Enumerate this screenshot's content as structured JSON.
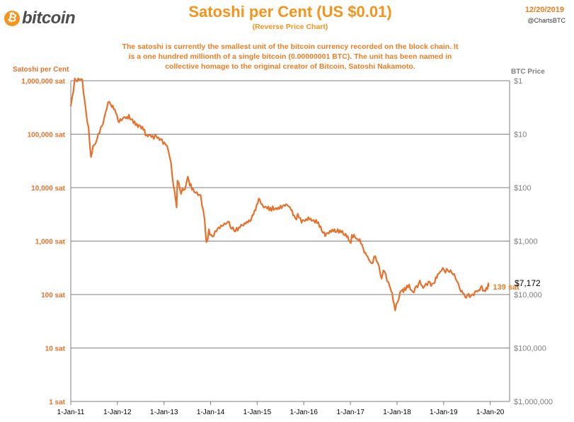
{
  "header": {
    "logo_symbol": "₿",
    "logo_text": "bitcoin",
    "title": "Satoshi per Cent (US $0.01)",
    "subtitle": "(Reverse Price Chart)",
    "description_line1": "The satoshi is currently the smallest unit of the bitcoin currency recorded on the block chain. It",
    "description_line2": "is a one hundred millionth of a single bitcoin (0.00000001 BTC).  The unit has been named in",
    "description_line3": "collective homage to the original creator of Bitcoin, Satoshi Nakamoto.",
    "date": "12/20/2019",
    "handle": "@ChartsBTC"
  },
  "colors": {
    "line": "#e8702a",
    "accent": "#f7931a",
    "grid": "#7f7f7f"
  },
  "chart_data": {
    "type": "line",
    "title": "Satoshi per Cent (US $0.01)",
    "subtitle": "(Reverse Price Chart)",
    "ylabel": "Satoshi per Cent",
    "y2label": "BTC Price",
    "y_scale": "log",
    "ylim": [
      1,
      1000000
    ],
    "y_ticks": [
      "1 sat",
      "10 sat",
      "100 sat",
      "1,000 sat",
      "10,000 sat",
      "100,000 sat",
      "1,000,000 sat"
    ],
    "y2_ticks": [
      "$1,000,000",
      "$100,000",
      "$10,000",
      "$1,000",
      "$100",
      "$10",
      "$1"
    ],
    "x_ticks": [
      "1-Jan-11",
      "1-Jan-12",
      "1-Jan-13",
      "1-Jan-14",
      "1-Jan-15",
      "1-Jan-16",
      "1-Jan-17",
      "1-Jan-18",
      "1-Jan-19",
      "1-Jan-20"
    ],
    "xlim": [
      "2011-01-01",
      "2020-06-01"
    ],
    "grid": true,
    "legend": "none",
    "annotations": {
      "last_sat": "139 sat",
      "last_price": "$7,172"
    },
    "series": [
      {
        "x": [
          "2011-01-01",
          "2011-02-01",
          "2011-03-01",
          "2011-04-01",
          "2011-05-01",
          "2011-05-20",
          "2011-06-08",
          "2011-06-25",
          "2011-07-15",
          "2011-08-15",
          "2011-09-20",
          "2011-10-20",
          "2011-11-18",
          "2011-12-20",
          "2012-01-15",
          "2012-02-20",
          "2012-04-01",
          "2012-06-01",
          "2012-07-15",
          "2012-08-17",
          "2012-09-15",
          "2012-11-01",
          "2012-12-15",
          "2013-01-15",
          "2013-02-15",
          "2013-03-15",
          "2013-04-09",
          "2013-04-16",
          "2013-05-15",
          "2013-06-15",
          "2013-07-06",
          "2013-08-15",
          "2013-09-15",
          "2013-10-15",
          "2013-11-15",
          "2013-11-29",
          "2013-12-18",
          "2014-01-15",
          "2014-02-15",
          "2014-04-10",
          "2014-05-15",
          "2014-06-15",
          "2014-07-15",
          "2014-09-15",
          "2014-11-15",
          "2015-01-14",
          "2015-02-15",
          "2015-04-15",
          "2015-06-15",
          "2015-08-25",
          "2015-09-15",
          "2015-11-04",
          "2015-11-15",
          "2015-12-15",
          "2016-02-15",
          "2016-04-15",
          "2016-06-17",
          "2016-07-15",
          "2016-09-15",
          "2016-11-15",
          "2017-01-04",
          "2017-01-11",
          "2017-03-15",
          "2017-05-25",
          "2017-06-15",
          "2017-07-15",
          "2017-08-15",
          "2017-09-02",
          "2017-09-15",
          "2017-10-15",
          "2017-11-15",
          "2017-12-17",
          "2018-01-15",
          "2018-02-06",
          "2018-02-20",
          "2018-04-06",
          "2018-05-05",
          "2018-06-29",
          "2018-07-25",
          "2018-08-15",
          "2018-09-15",
          "2018-10-15",
          "2018-11-25",
          "2018-12-15",
          "2019-01-15",
          "2019-02-15",
          "2019-03-15",
          "2019-04-15",
          "2019-05-15",
          "2019-06-26",
          "2019-07-15",
          "2019-08-15",
          "2019-09-15",
          "2019-10-26",
          "2019-11-15",
          "2019-12-17",
          "2019-12-20"
        ],
        "y": [
          333333,
          1000000,
          1100000,
          1000000,
          250000,
          130000,
          35000,
          60000,
          73000,
          110000,
          200000,
          400000,
          350000,
          250000,
          170000,
          200000,
          210000,
          150000,
          130000,
          95000,
          90000,
          88000,
          75000,
          67000,
          40000,
          12000,
          4500,
          15000,
          8300,
          10000,
          14500,
          9000,
          8000,
          7000,
          2500,
          900,
          1500,
          1100,
          1600,
          2000,
          2400,
          1700,
          1600,
          2100,
          2600,
          5800,
          4400,
          4000,
          4200,
          4700,
          4200,
          2500,
          3300,
          2300,
          2700,
          2200,
          1300,
          1500,
          1600,
          1400,
          900,
          1300,
          1000,
          450,
          380,
          520,
          300,
          215,
          300,
          190,
          125,
          53,
          90,
          130,
          120,
          145,
          110,
          170,
          130,
          160,
          160,
          155,
          270,
          300,
          280,
          280,
          250,
          190,
          120,
          87,
          95,
          100,
          110,
          135,
          110,
          150,
          139
        ]
      }
    ]
  }
}
